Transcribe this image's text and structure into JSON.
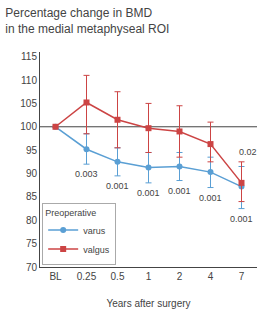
{
  "chart_data": {
    "type": "line",
    "title": "Percentage change in BMD",
    "subtitle": "in the medial metaphyseal ROI",
    "x_label": "Years after surgery",
    "categories": [
      "BL",
      "0.25",
      "0.5",
      "1",
      "2",
      "4",
      "7"
    ],
    "series": [
      {
        "name": "varus",
        "color": "#5a9fd4",
        "marker": "circle",
        "values": [
          100,
          95.2,
          92.5,
          91.3,
          91.5,
          90.3,
          87.2
        ],
        "ci_low": [
          100,
          92.0,
          89.5,
          88.0,
          88.5,
          87.0,
          82.5
        ],
        "ci_high": [
          100,
          98.5,
          95.5,
          94.5,
          94.5,
          93.5,
          91.5
        ],
        "p_values": [
          null,
          "0.003",
          "0.001",
          "0.001",
          "0.001",
          "0.001",
          "0.001"
        ]
      },
      {
        "name": "valgus",
        "color": "#cc4444",
        "marker": "square",
        "values": [
          100,
          105.2,
          101.5,
          99.7,
          99.0,
          96.3,
          88.0
        ],
        "ci_low": [
          100,
          98.5,
          95.5,
          94.5,
          93.5,
          92.5,
          84.0
        ],
        "ci_high": [
          100,
          111.0,
          107.5,
          105.0,
          104.5,
          101.0,
          92.5
        ],
        "p_values": [
          null,
          null,
          null,
          null,
          null,
          null,
          "0.02"
        ]
      }
    ],
    "ylim": [
      70,
      116
    ],
    "yticks": [
      70,
      75,
      80,
      85,
      90,
      95,
      100,
      105,
      110,
      115
    ],
    "hline": 100,
    "grid": false,
    "legend": "lower left",
    "legend_title": "Preoperative"
  }
}
